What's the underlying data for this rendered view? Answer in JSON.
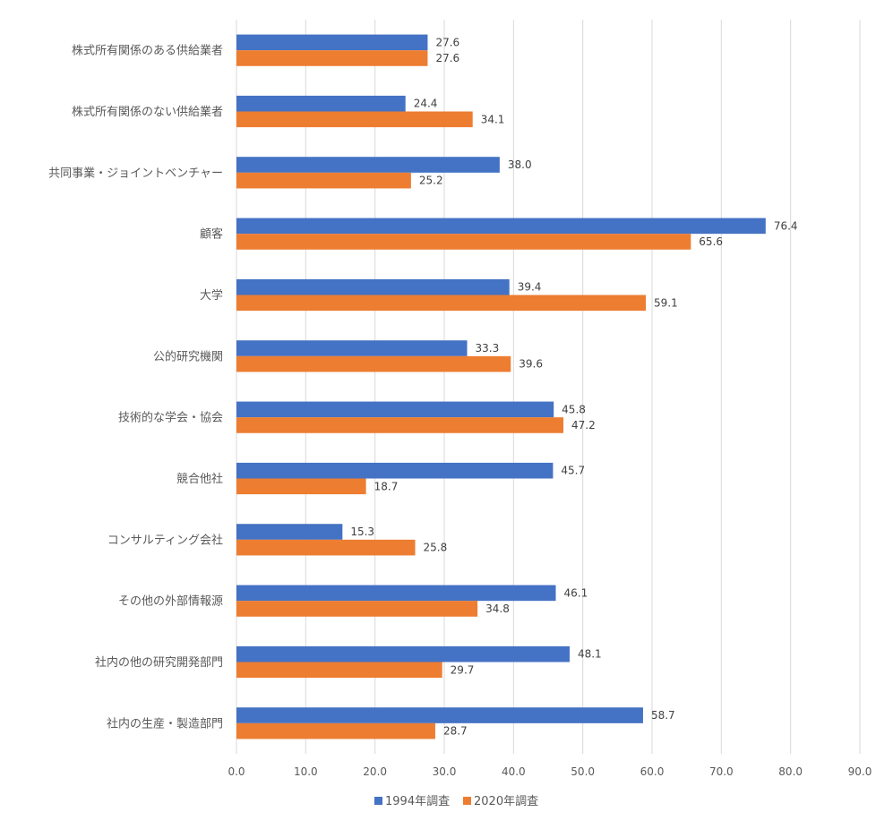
{
  "chart_data": {
    "type": "bar",
    "orientation": "horizontal",
    "categories": [
      "株式所有関係のある供給業者",
      "株式所有関係のない供給業者",
      "共同事業・ジョイントベンチャー",
      "顧客",
      "大学",
      "公的研究機関",
      "技術的な学会・協会",
      "競合他社",
      "コンサルティング会社",
      "その他の外部情報源",
      "社内の他の研究開発部門",
      "社内の生産・製造部門"
    ],
    "series": [
      {
        "name": "1994年調査",
        "color": "#4472c4",
        "values": [
          27.6,
          24.4,
          38.0,
          76.4,
          39.4,
          33.3,
          45.8,
          45.7,
          15.3,
          46.1,
          48.1,
          58.7
        ]
      },
      {
        "name": "2020年調査",
        "color": "#ed7d31",
        "values": [
          27.6,
          34.1,
          25.2,
          65.6,
          59.1,
          39.6,
          47.2,
          18.7,
          25.8,
          34.8,
          29.7,
          28.7
        ]
      }
    ],
    "xlim": [
      0,
      90
    ],
    "xticks": [
      "0.0",
      "10.0",
      "20.0",
      "30.0",
      "40.0",
      "50.0",
      "60.0",
      "70.0",
      "80.0",
      "90.0"
    ],
    "grid": true,
    "legend_position": "bottom",
    "title": "",
    "xlabel": "",
    "ylabel": ""
  }
}
